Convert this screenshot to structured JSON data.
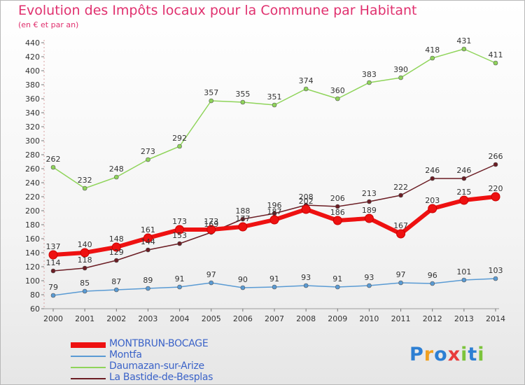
{
  "header": {
    "title": "Evolution des Impôts locaux pour la Commune par Habitant",
    "subtitle": "(en € et par an)"
  },
  "branding": {
    "logo_letters": [
      {
        "ch": "P",
        "color": "#2d7fd3"
      },
      {
        "ch": "r",
        "color": "#f0a020"
      },
      {
        "ch": "o",
        "color": "#2d7fd3"
      },
      {
        "ch": "x",
        "color": "#e83c3c"
      },
      {
        "ch": "i",
        "color": "#7cc43c"
      },
      {
        "ch": "t",
        "color": "#2d7fd3"
      },
      {
        "ch": "i",
        "color": "#7cc43c"
      }
    ]
  },
  "chart_data": {
    "type": "line",
    "title": "Evolution des Impôts locaux pour la Commune par Habitant",
    "subtitle": "(en € et par an)",
    "x": [
      2000,
      2001,
      2002,
      2003,
      2004,
      2005,
      2006,
      2007,
      2008,
      2009,
      2010,
      2011,
      2012,
      2013,
      2014
    ],
    "ylim": [
      60,
      440
    ],
    "yticks": [
      60,
      80,
      100,
      120,
      140,
      160,
      180,
      200,
      220,
      240,
      260,
      280,
      300,
      320,
      340,
      360,
      380,
      400,
      420,
      440
    ],
    "grid": false,
    "legend_position": "bottom-left",
    "series": [
      {
        "name": "MONTBRUN-BOCAGE",
        "color": "#ee1111",
        "width": 6,
        "values": [
          137,
          140,
          148,
          161,
          173,
          173,
          177,
          187,
          202,
          186,
          189,
          167,
          203,
          215,
          220
        ]
      },
      {
        "name": "Montfa",
        "color": "#5a9bd4",
        "width": 1.5,
        "values": [
          79,
          85,
          87,
          89,
          91,
          97,
          90,
          91,
          93,
          91,
          93,
          97,
          96,
          101,
          103
        ]
      },
      {
        "name": "Daumazan-sur-Arize",
        "color": "#8fd45a",
        "width": 1.5,
        "values": [
          262,
          232,
          248,
          273,
          292,
          357,
          355,
          351,
          374,
          360,
          383,
          390,
          418,
          431,
          411
        ]
      },
      {
        "name": "La Bastide-de-Besplas",
        "color": "#6b1d24",
        "width": 1.5,
        "values": [
          114,
          118,
          129,
          144,
          153,
          169,
          188,
          196,
          208,
          206,
          213,
          222,
          246,
          246,
          266
        ]
      }
    ]
  }
}
